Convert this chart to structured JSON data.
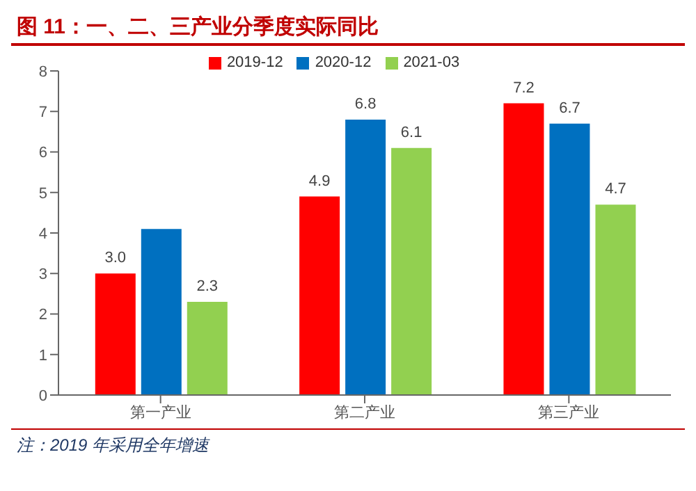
{
  "chart_data": {
    "type": "bar",
    "title": "图 11：一、二、三产业分季度实际同比",
    "categories": [
      "第一产业",
      "第二产业",
      "第三产业"
    ],
    "series": [
      {
        "name": "2019-12",
        "color": "#ff0000",
        "values": [
          3.0,
          4.9,
          7.2
        ],
        "value_labels": [
          "3.0",
          "4.9",
          "7.2"
        ]
      },
      {
        "name": "2020-12",
        "color": "#0070c0",
        "values": [
          4.1,
          6.8,
          6.7
        ],
        "value_labels": [
          null,
          "6.8",
          "6.7"
        ]
      },
      {
        "name": "2021-03",
        "color": "#92d050",
        "values": [
          2.3,
          6.1,
          4.7
        ],
        "value_labels": [
          "2.3",
          "6.1",
          "4.7"
        ]
      }
    ],
    "ylim": [
      0,
      8
    ],
    "yticks": [
      0,
      1,
      2,
      3,
      4,
      5,
      6,
      7,
      8
    ],
    "legend": "top",
    "annotations": [
      "注：2019 年采用全年增速"
    ]
  }
}
